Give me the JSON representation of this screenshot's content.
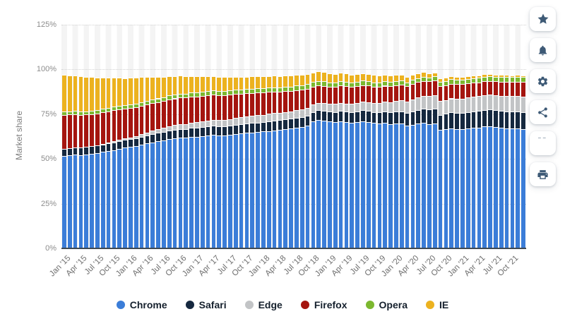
{
  "toolbar": {
    "icon_color": "#3e5a76",
    "quote_icon_glyph": "“",
    "buttons": [
      {
        "name": "favorite",
        "icon": "star-icon"
      },
      {
        "name": "notifications",
        "icon": "bell-icon"
      },
      {
        "name": "settings",
        "icon": "gear-icon"
      },
      {
        "name": "share",
        "icon": "share-icon"
      },
      {
        "name": "cite",
        "icon": "quote-icon"
      },
      {
        "name": "print",
        "icon": "printer-icon"
      }
    ]
  },
  "chart_data": {
    "type": "bar",
    "stacked": true,
    "title": "",
    "xlabel": "",
    "ylabel": "Market share",
    "ylim": [
      0,
      125
    ],
    "y_ticks": [
      "0%",
      "25%",
      "50%",
      "75%",
      "100%",
      "125%"
    ],
    "y_tick_values": [
      0,
      25,
      50,
      75,
      100,
      125
    ],
    "grid": "dotted-horizontal",
    "plot_band_colors": [
      "#f4f4f4",
      "#ffffff"
    ],
    "axis_line_color": "#3f4a54",
    "legend_position": "bottom",
    "n_bars": 84,
    "x_range": [
      "Jan 2015",
      "Dec 2021"
    ],
    "x_tick_every": 3,
    "x_tick_labels": [
      "Jan '15",
      "Apr '15",
      "Jul '15",
      "Oct '15",
      "Jan '16",
      "Apr '16",
      "Jul '16",
      "Oct '16",
      "Jan '17",
      "Apr '17",
      "Jul '17",
      "Oct '17",
      "Jan '18",
      "Apr '18",
      "Jul '18",
      "Oct '18",
      "Jan '19",
      "Apr '19",
      "Jul '19",
      "Oct '19",
      "Jan '20",
      "Apr '20",
      "Jul '20",
      "Oct '20",
      "Jan '21",
      "Apr '21",
      "Jul '21",
      "Oct '21"
    ],
    "series": [
      {
        "name": "Chrome",
        "color": "#3b7dd8",
        "values": [
          51.8,
          52.1,
          52.4,
          52.2,
          52.6,
          53.0,
          53.4,
          53.9,
          54.5,
          55.0,
          55.6,
          56.2,
          56.6,
          57.0,
          57.9,
          58.6,
          59.3,
          59.8,
          60.4,
          61.1,
          61.6,
          61.9,
          61.8,
          62.3,
          62.4,
          62.7,
          63.1,
          63.4,
          63.0,
          63.2,
          63.5,
          63.8,
          64.2,
          64.5,
          64.8,
          65.0,
          65.3,
          65.6,
          66.0,
          66.3,
          66.5,
          66.9,
          67.6,
          67.9,
          68.5,
          70.9,
          71.8,
          71.4,
          71.0,
          70.7,
          71.1,
          70.6,
          70.3,
          70.6,
          71.0,
          70.7,
          70.0,
          69.8,
          70.1,
          69.6,
          69.9,
          69.7,
          68.5,
          69.1,
          69.8,
          70.2,
          69.6,
          69.9,
          66.1,
          66.5,
          67.2,
          66.8,
          66.7,
          67.1,
          67.3,
          67.6,
          68.1,
          68.3,
          67.9,
          67.5,
          67.2,
          67.0,
          66.9,
          66.6
        ]
      },
      {
        "name": "Safari",
        "color": "#15283f",
        "values": [
          4.0,
          3.9,
          3.9,
          4.0,
          4.1,
          4.0,
          4.1,
          4.2,
          4.2,
          4.3,
          4.3,
          4.4,
          4.4,
          4.5,
          4.5,
          4.6,
          4.6,
          4.7,
          4.7,
          4.8,
          4.8,
          4.9,
          4.9,
          5.0,
          5.0,
          5.0,
          5.1,
          5.1,
          5.1,
          5.1,
          5.1,
          5.2,
          5.2,
          5.2,
          5.3,
          5.3,
          5.3,
          5.4,
          5.4,
          5.4,
          5.5,
          5.5,
          5.5,
          5.6,
          5.6,
          5.2,
          5.3,
          5.4,
          5.5,
          5.6,
          5.7,
          5.8,
          5.9,
          6.0,
          6.1,
          6.2,
          6.3,
          6.4,
          6.5,
          6.6,
          6.8,
          7.0,
          7.2,
          7.4,
          7.6,
          7.8,
          8.0,
          8.2,
          8.6,
          8.7,
          8.8,
          8.9,
          9.0,
          9.1,
          9.2,
          9.2,
          9.3,
          9.3,
          9.4,
          9.4,
          9.5,
          9.5,
          9.6,
          9.6
        ]
      },
      {
        "name": "Edge",
        "color": "#c2c4c6",
        "values": [
          0,
          0,
          0,
          0,
          0,
          0,
          0.2,
          0.4,
          0.6,
          0.8,
          0.9,
          1.0,
          1.1,
          1.2,
          1.4,
          1.6,
          1.8,
          2.0,
          2.2,
          2.4,
          2.6,
          2.8,
          2.9,
          3.0,
          3.1,
          3.2,
          3.3,
          3.4,
          3.5,
          3.6,
          3.7,
          3.8,
          3.9,
          4.0,
          4.0,
          4.1,
          4.1,
          4.2,
          4.2,
          4.2,
          4.3,
          4.3,
          4.2,
          4.3,
          4.4,
          4.2,
          4.3,
          4.4,
          4.4,
          4.5,
          4.5,
          4.6,
          4.6,
          4.7,
          4.8,
          4.9,
          5.0,
          5.2,
          5.4,
          5.6,
          5.8,
          6.1,
          6.4,
          6.7,
          7.0,
          7.2,
          7.4,
          7.5,
          7.6,
          7.7,
          7.8,
          7.9,
          8.0,
          8.1,
          8.2,
          8.2,
          8.3,
          8.3,
          8.4,
          8.4,
          8.5,
          8.5,
          8.6,
          8.6
        ]
      },
      {
        "name": "Firefox",
        "color": "#a5150f",
        "values": [
          18.9,
          18.8,
          18.6,
          18.5,
          18.2,
          18.0,
          17.8,
          17.5,
          17.2,
          17.0,
          16.8,
          16.5,
          16.3,
          16.1,
          15.8,
          15.6,
          15.4,
          15.2,
          15.0,
          14.9,
          14.8,
          14.7,
          14.6,
          14.5,
          14.4,
          14.3,
          14.2,
          14.1,
          14.0,
          13.8,
          13.6,
          13.4,
          13.2,
          13.0,
          12.8,
          12.6,
          12.4,
          12.2,
          12.0,
          11.8,
          11.6,
          11.4,
          11.2,
          11.0,
          10.8,
          10.2,
          9.8,
          9.6,
          9.5,
          9.6,
          9.7,
          9.6,
          9.5,
          9.4,
          9.3,
          9.2,
          9.1,
          9.0,
          8.9,
          8.8,
          8.7,
          8.6,
          8.5,
          8.6,
          8.5,
          8.4,
          8.3,
          8.2,
          8.4,
          8.3,
          8.2,
          8.1,
          8.0,
          7.9,
          7.8,
          7.7,
          7.6,
          7.5,
          7.6,
          7.7,
          7.8,
          7.9,
          8.0,
          8.1
        ]
      },
      {
        "name": "Opera",
        "color": "#7cb82f",
        "values": [
          1.8,
          1.8,
          1.9,
          1.9,
          1.8,
          1.9,
          1.9,
          2.0,
          1.9,
          2.0,
          2.0,
          2.0,
          2.0,
          2.0,
          2.1,
          2.0,
          2.1,
          2.1,
          2.1,
          2.2,
          2.1,
          2.2,
          2.2,
          2.2,
          2.2,
          2.2,
          2.3,
          2.2,
          2.3,
          2.3,
          2.3,
          2.4,
          2.3,
          2.4,
          2.4,
          2.4,
          2.4,
          2.4,
          2.5,
          2.4,
          2.5,
          2.4,
          2.5,
          2.4,
          2.5,
          2.4,
          2.4,
          2.5,
          2.4,
          2.4,
          2.4,
          2.5,
          2.4,
          2.4,
          2.5,
          2.4,
          2.4,
          2.3,
          2.4,
          2.3,
          2.3,
          2.3,
          2.2,
          2.3,
          2.2,
          2.3,
          2.2,
          2.3,
          2.4,
          2.4,
          2.5,
          2.5,
          2.5,
          2.6,
          2.6,
          2.6,
          2.7,
          2.7,
          2.6,
          2.7,
          2.7,
          2.8,
          2.8,
          2.8
        ]
      },
      {
        "name": "IE",
        "color": "#ecb21f",
        "values": [
          20.5,
          20.2,
          19.9,
          19.6,
          19.2,
          18.8,
          18.2,
          17.6,
          17.0,
          16.3,
          15.7,
          15.1,
          15.2,
          14.6,
          14.0,
          13.4,
          12.8,
          12.2,
          11.6,
          11.0,
          10.5,
          10.1,
          9.7,
          9.4,
          9.0,
          8.7,
          8.4,
          8.1,
          7.9,
          7.7,
          7.5,
          7.3,
          7.1,
          6.9,
          6.8,
          6.7,
          6.6,
          6.5,
          6.4,
          6.3,
          6.2,
          6.1,
          6.0,
          5.9,
          5.8,
          5.4,
          5.2,
          5.1,
          4.9,
          4.8,
          4.7,
          4.6,
          4.5,
          4.4,
          4.3,
          4.2,
          4.1,
          4.0,
          3.9,
          3.8,
          3.6,
          3.4,
          3.2,
          3.0,
          2.8,
          2.6,
          2.4,
          2.2,
          2.0,
          1.9,
          1.8,
          1.7,
          1.6,
          1.5,
          1.5,
          1.4,
          1.4,
          1.3,
          1.3,
          1.2,
          1.2,
          1.1,
          1.1,
          1.0
        ]
      }
    ]
  }
}
